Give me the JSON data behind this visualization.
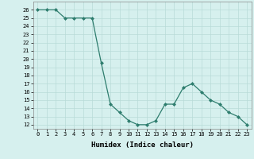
{
  "x": [
    0,
    1,
    2,
    3,
    4,
    5,
    6,
    7,
    8,
    9,
    10,
    11,
    12,
    13,
    14,
    15,
    16,
    17,
    18,
    19,
    20,
    21,
    22,
    23
  ],
  "y": [
    26,
    26,
    26,
    25,
    25,
    25,
    25,
    19.5,
    14.5,
    13.5,
    12.5,
    12,
    12,
    12.5,
    14.5,
    14.5,
    16.5,
    17,
    16,
    15,
    14.5,
    13.5,
    13,
    12
  ],
  "line_color": "#2e7d6e",
  "marker": "D",
  "marker_size": 2,
  "bg_color": "#d6f0ee",
  "grid_color": "#b8dbd8",
  "xlabel": "Humidex (Indice chaleur)",
  "ylim": [
    11.5,
    27
  ],
  "xlim": [
    -0.5,
    23.5
  ],
  "yticks": [
    12,
    13,
    14,
    15,
    16,
    17,
    18,
    19,
    20,
    21,
    22,
    23,
    24,
    25,
    26
  ],
  "xticks": [
    0,
    1,
    2,
    3,
    4,
    5,
    6,
    7,
    8,
    9,
    10,
    11,
    12,
    13,
    14,
    15,
    16,
    17,
    18,
    19,
    20,
    21,
    22,
    23
  ],
  "tick_labelsize": 5.0,
  "xlabel_fontsize": 6.5
}
